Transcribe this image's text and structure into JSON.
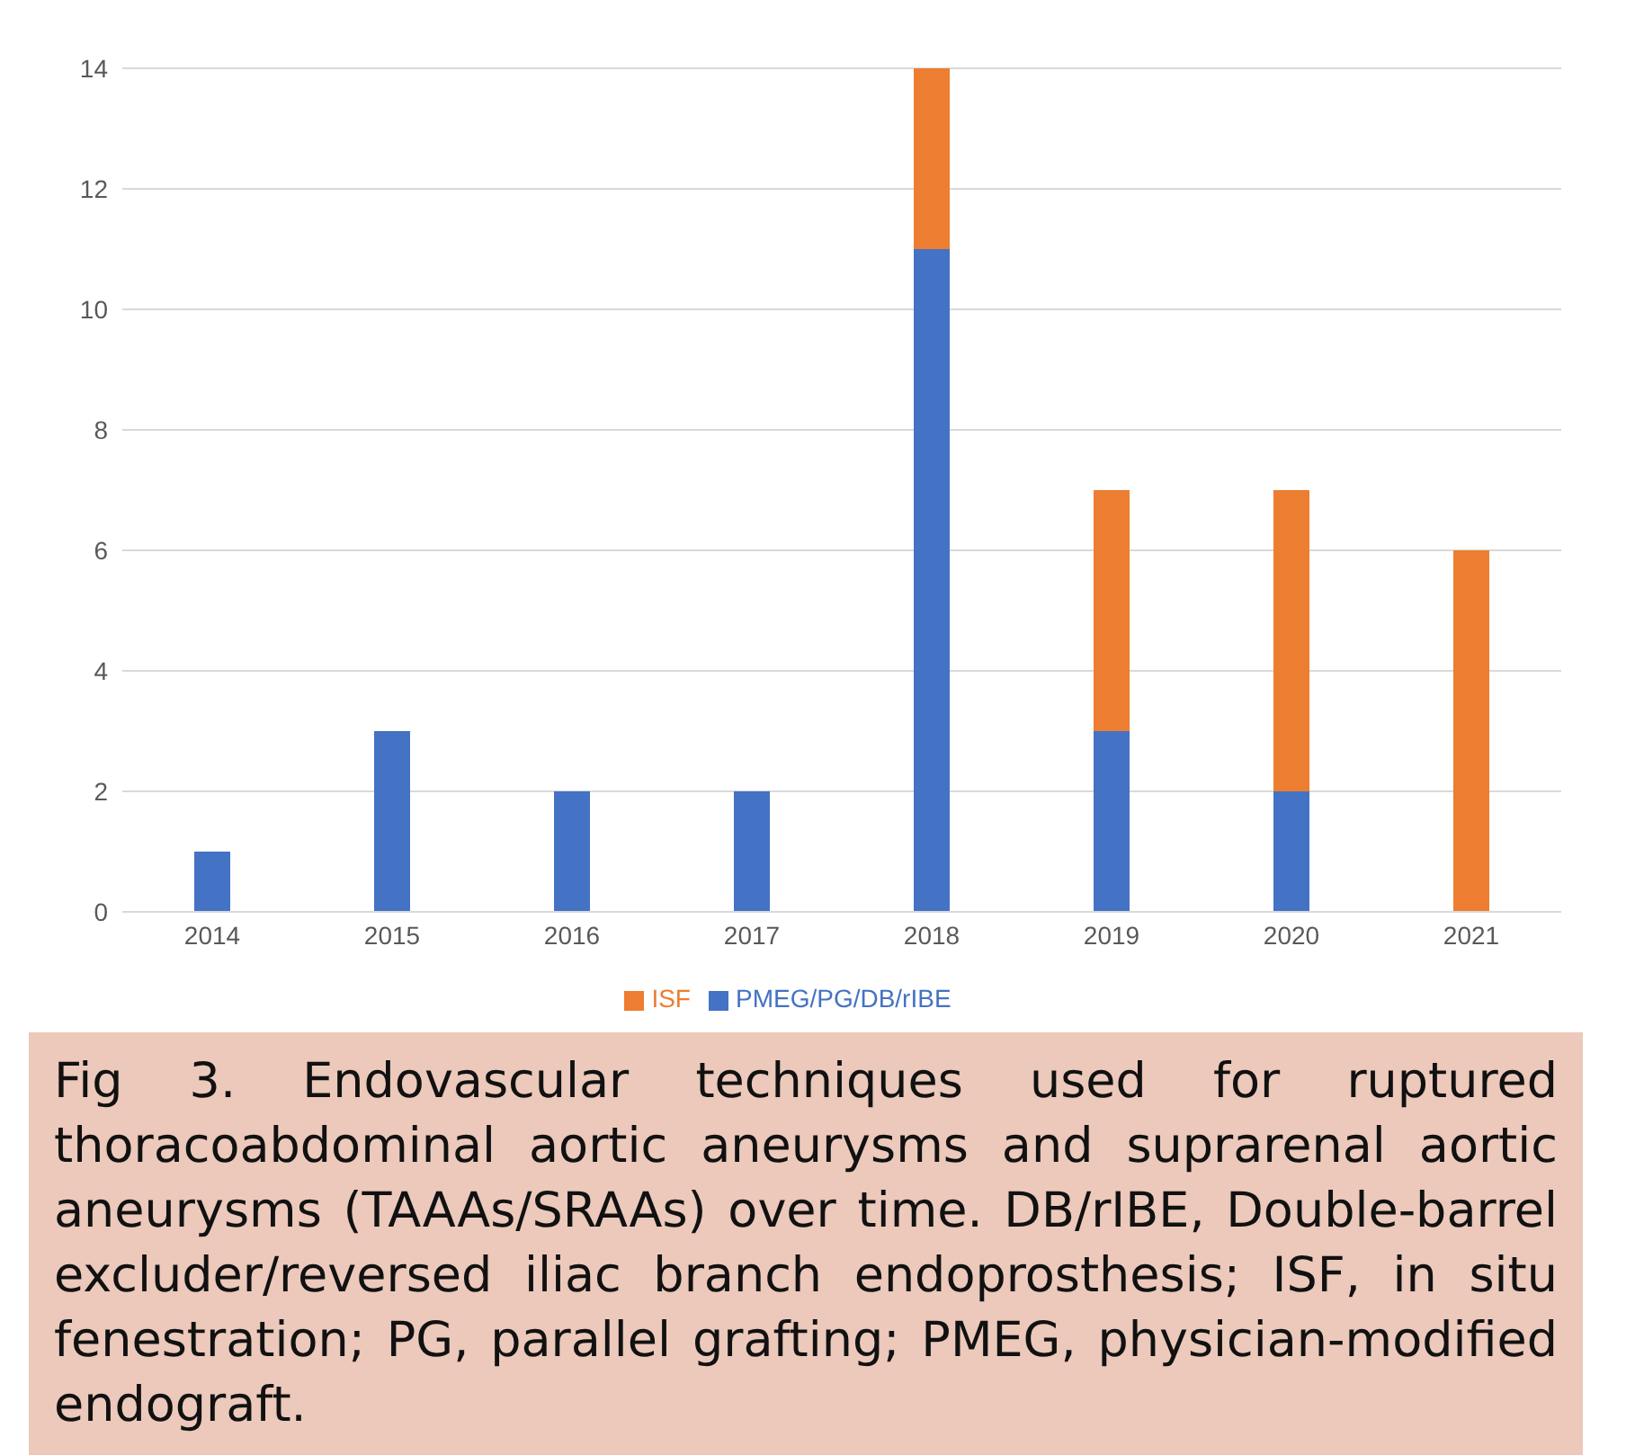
{
  "chart_data": {
    "type": "bar",
    "stacked": true,
    "categories": [
      "2014",
      "2015",
      "2016",
      "2017",
      "2018",
      "2019",
      "2020",
      "2021"
    ],
    "series": [
      {
        "name": "PMEG/PG/DB/rIBE",
        "color": "#4472c4",
        "values": [
          1,
          3,
          2,
          2,
          11,
          3,
          2,
          0
        ]
      },
      {
        "name": "ISF",
        "color": "#ed7d31",
        "values": [
          0,
          0,
          0,
          0,
          3,
          4,
          5,
          6
        ]
      }
    ],
    "ylim": [
      0,
      14
    ],
    "yticks": [
      0,
      2,
      4,
      6,
      8,
      10,
      12,
      14
    ],
    "grid": "y",
    "legend": "bottom",
    "annotations": [
      "Fig 3. Endovascular techniques used for ruptured thoracoabdominal aortic aneurysms and suprarenal aortic aneurysms (TAAAs/SRAAs) over time. DB/rIBE, Double-barrel excluder/reversed iliac branch endoprosthesis; ISF, in situ fenestration; PG, parallel grafting; PMEG, physician-modified endograft."
    ]
  }
}
